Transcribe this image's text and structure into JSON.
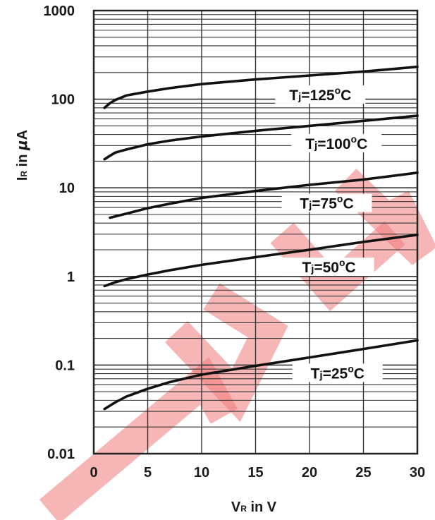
{
  "chart_data": {
    "type": "line",
    "x_scale": "linear",
    "y_scale": "log",
    "xlim": [
      0,
      30
    ],
    "ylim": [
      0.01,
      1000
    ],
    "grid": true,
    "xlabel": {
      "main": "V",
      "sub": "R",
      "rest": " in V"
    },
    "ylabel": {
      "main": "I",
      "sub": "R",
      "rest": " in ",
      "greek": "μ",
      "unit": "A"
    },
    "x_ticks": [
      {
        "value": 0,
        "label": "0"
      },
      {
        "value": 5,
        "label": "5"
      },
      {
        "value": 10,
        "label": "10"
      },
      {
        "value": 15,
        "label": "15"
      },
      {
        "value": 20,
        "label": "20"
      },
      {
        "value": 25,
        "label": "25"
      },
      {
        "value": 30,
        "label": "30"
      }
    ],
    "y_ticks": [
      {
        "value": 1000,
        "label": "1000"
      },
      {
        "value": 100,
        "label": "100"
      },
      {
        "value": 10,
        "label": "10"
      },
      {
        "value": 1,
        "label": "1"
      },
      {
        "value": 0.1,
        "label": "0.1"
      },
      {
        "value": 0.01,
        "label": "0.01"
      }
    ],
    "series": [
      {
        "name": "Tj=125°C",
        "label": {
          "main": "T",
          "sub": "j",
          "rest": "=125",
          "deg": "o",
          "unit": "C"
        },
        "x": [
          1,
          1.5,
          2,
          3,
          5,
          7,
          10,
          15,
          20,
          25,
          30
        ],
        "y": [
          80,
          90,
          98,
          110,
          122,
          133,
          148,
          167,
          185,
          205,
          232
        ]
      },
      {
        "name": "Tj=100°C",
        "label": {
          "main": "T",
          "sub": "j",
          "rest": "=100",
          "deg": "o",
          "unit": "C"
        },
        "x": [
          1,
          1.5,
          2,
          3,
          5,
          7,
          10,
          15,
          20,
          25,
          30
        ],
        "y": [
          21,
          23,
          25,
          27,
          31,
          34,
          38,
          44,
          50,
          57,
          65
        ]
      },
      {
        "name": "Tj=75°C",
        "label": {
          "main": "T",
          "sub": "j",
          "rest": "=75",
          "deg": "o",
          "unit": "C"
        },
        "x": [
          1.5,
          3,
          5,
          7,
          10,
          15,
          20,
          25,
          30
        ],
        "y": [
          4.6,
          5.1,
          5.9,
          6.6,
          7.7,
          9.2,
          10.8,
          12.4,
          14.8
        ]
      },
      {
        "name": "Tj=50°C",
        "label": {
          "main": "T",
          "sub": "j",
          "rest": "=50",
          "deg": "o",
          "unit": "C"
        },
        "x": [
          1,
          2,
          3,
          5,
          7,
          10,
          15,
          20,
          25,
          30
        ],
        "y": [
          0.78,
          0.86,
          0.93,
          1.05,
          1.17,
          1.35,
          1.65,
          2.0,
          2.45,
          2.95
        ]
      },
      {
        "name": "Tj=25°C",
        "label": {
          "main": "T",
          "sub": "j",
          "rest": "=25",
          "deg": "o",
          "unit": "C"
        },
        "x": [
          1,
          2,
          3,
          5,
          7,
          10,
          15,
          20,
          25,
          30
        ],
        "y": [
          0.032,
          0.038,
          0.044,
          0.054,
          0.064,
          0.078,
          0.098,
          0.122,
          0.152,
          0.19
        ]
      }
    ]
  }
}
